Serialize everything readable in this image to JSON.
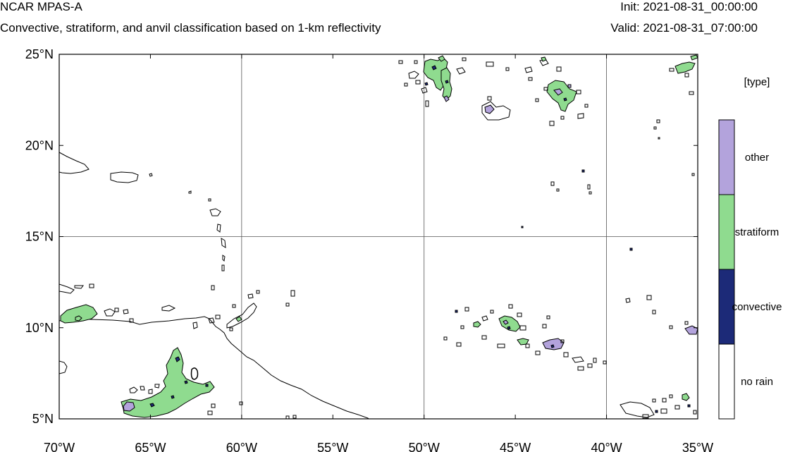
{
  "header": {
    "model": "NCAR MPAS-A",
    "description": "Convective, stratiform, and anvil classification based on 1-km reflectivity",
    "init": "Init: 2021-08-31_00:00:00",
    "valid": "Valid: 2021-08-31_07:00:00"
  },
  "map": {
    "lon_range": [
      -70,
      -35
    ],
    "lat_range": [
      5,
      25
    ],
    "x_ticks": [
      {
        "value": -70,
        "label": "70°W"
      },
      {
        "value": -65,
        "label": "65°W"
      },
      {
        "value": -60,
        "label": "60°W"
      },
      {
        "value": -55,
        "label": "55°W"
      },
      {
        "value": -50,
        "label": "50°W"
      },
      {
        "value": -45,
        "label": "45°W"
      },
      {
        "value": -40,
        "label": "40°W"
      },
      {
        "value": -35,
        "label": "35°W"
      }
    ],
    "y_ticks": [
      {
        "value": 25,
        "label": "25°N"
      },
      {
        "value": 20,
        "label": "20°N"
      },
      {
        "value": 15,
        "label": "15°N"
      },
      {
        "value": 10,
        "label": "10°N"
      },
      {
        "value": 5,
        "label": "5°N"
      }
    ],
    "gridlines_every_deg": 10
  },
  "legend": {
    "title": "[type]",
    "items": [
      {
        "label": "other",
        "color": "#b3a3dc"
      },
      {
        "label": "stratiform",
        "color": "#8fdb8f"
      },
      {
        "label": "convective",
        "color": "#1c2a78"
      },
      {
        "label": "no rain",
        "color": "#ffffff"
      }
    ]
  },
  "colors": {
    "stratiform": "#8fdb8f",
    "convective": "#1c2a78",
    "other": "#b3a3dc",
    "coast": "#000000",
    "grid": "#555555"
  }
}
